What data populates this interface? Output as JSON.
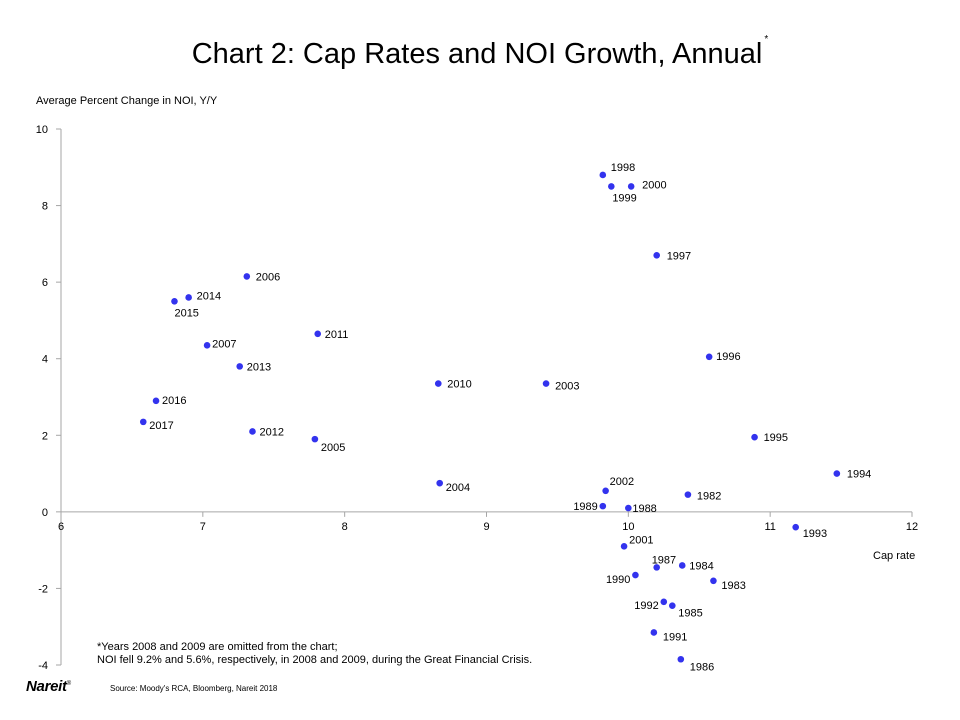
{
  "title": "Chart 2: Cap Rates and NOI Growth, Annual",
  "title_mark": "*",
  "logo": {
    "text": "Nareit",
    "mark": "®"
  },
  "source": "Source: Moody's RCA, Bloomberg, Nareit 2018",
  "footnote": {
    "line1": "*Years 2008 and 2009 are omitted from the chart;",
    "line2": "NOI fell 9.2% and 5.6%, respectively, in 2008 and 2009, during the Great Financial Crisis."
  },
  "chart_data": {
    "type": "scatter",
    "title": "Chart 2: Cap Rates and NOI Growth, Annual",
    "xlabel": "Cap rate",
    "ylabel": "Average Percent Change in NOI, Y/Y",
    "xlim": [
      6,
      12
    ],
    "ylim": [
      -4,
      10
    ],
    "xticks": [
      6,
      7,
      8,
      9,
      10,
      11,
      12
    ],
    "yticks": [
      10,
      8,
      6,
      4,
      2,
      0,
      -2,
      -4
    ],
    "grid": false,
    "legend": "none",
    "marker_color": "#3333ee",
    "points": [
      {
        "label": "1998",
        "x": 9.82,
        "y": 8.8
      },
      {
        "label": "1999",
        "x": 9.88,
        "y": 8.5
      },
      {
        "label": "2000",
        "x": 10.02,
        "y": 8.5
      },
      {
        "label": "1997",
        "x": 10.2,
        "y": 6.7
      },
      {
        "label": "2006",
        "x": 7.31,
        "y": 6.15
      },
      {
        "label": "2014",
        "x": 6.9,
        "y": 5.6
      },
      {
        "label": "2015",
        "x": 6.8,
        "y": 5.5
      },
      {
        "label": "2011",
        "x": 7.81,
        "y": 4.65
      },
      {
        "label": "2007",
        "x": 7.03,
        "y": 4.35
      },
      {
        "label": "1996",
        "x": 10.57,
        "y": 4.05
      },
      {
        "label": "2013",
        "x": 7.26,
        "y": 3.8
      },
      {
        "label": "2010",
        "x": 8.66,
        "y": 3.35
      },
      {
        "label": "2003",
        "x": 9.42,
        "y": 3.35
      },
      {
        "label": "2016",
        "x": 6.67,
        "y": 2.9
      },
      {
        "label": "2017",
        "x": 6.58,
        "y": 2.35
      },
      {
        "label": "2012",
        "x": 7.35,
        "y": 2.1
      },
      {
        "label": "2005",
        "x": 7.79,
        "y": 1.9
      },
      {
        "label": "1995",
        "x": 10.89,
        "y": 1.95
      },
      {
        "label": "1994",
        "x": 11.47,
        "y": 1.0
      },
      {
        "label": "2004",
        "x": 8.67,
        "y": 0.75
      },
      {
        "label": "2002",
        "x": 9.84,
        "y": 0.55
      },
      {
        "label": "1982",
        "x": 10.42,
        "y": 0.45
      },
      {
        "label": "1989",
        "x": 9.82,
        "y": 0.15
      },
      {
        "label": "1988",
        "x": 10.0,
        "y": 0.1
      },
      {
        "label": "1993",
        "x": 11.18,
        "y": -0.4
      },
      {
        "label": "2001",
        "x": 9.97,
        "y": -0.9
      },
      {
        "label": "1987",
        "x": 10.2,
        "y": -1.45
      },
      {
        "label": "1984",
        "x": 10.38,
        "y": -1.4
      },
      {
        "label": "1990",
        "x": 10.05,
        "y": -1.65
      },
      {
        "label": "1983",
        "x": 10.6,
        "y": -1.8
      },
      {
        "label": "1992",
        "x": 10.25,
        "y": -2.35
      },
      {
        "label": "1985",
        "x": 10.31,
        "y": -2.45
      },
      {
        "label": "1991",
        "x": 10.18,
        "y": -3.15
      },
      {
        "label": "1986",
        "x": 10.37,
        "y": -3.85
      }
    ]
  }
}
